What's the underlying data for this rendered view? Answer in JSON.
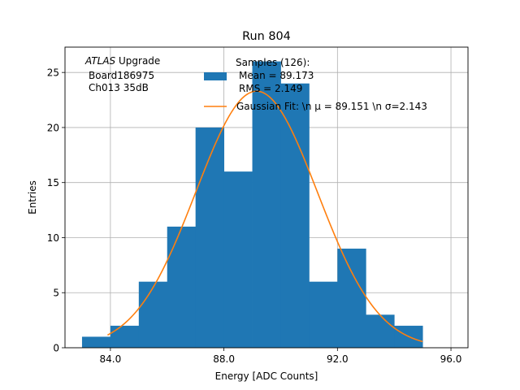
{
  "chart_data": {
    "type": "bar",
    "title": "Run 804",
    "xlabel": "Energy [ADC Counts]",
    "ylabel": "Entries",
    "xlim": [
      82.4,
      96.6
    ],
    "ylim": [
      0,
      27.3
    ],
    "grid": true,
    "x_ticks": [
      84,
      88,
      92,
      96
    ],
    "x_tick_labels": [
      "84.0",
      "88.0",
      "92.0",
      "96.0"
    ],
    "y_ticks": [
      0,
      5,
      10,
      15,
      20,
      25
    ],
    "y_tick_labels": [
      "0",
      "5",
      "10",
      "15",
      "20",
      "25"
    ],
    "histogram": {
      "name": "Samples",
      "color": "#1f77b4",
      "bin_edges": [
        83,
        84,
        85,
        86,
        87,
        88,
        89,
        90,
        91,
        92,
        93,
        94,
        95
      ],
      "counts": [
        1,
        2,
        6,
        11,
        20,
        16,
        26,
        24,
        6,
        9,
        3,
        2
      ]
    },
    "fit": {
      "name": "Gaussian Fit",
      "color": "#ff7f0e",
      "mu": 89.151,
      "sigma": 2.143,
      "amplitude": 23.3,
      "x_range": [
        83.9,
        95
      ]
    },
    "annotation": {
      "italic": "ATLAS",
      "rest": " Upgrade",
      "line2": "Board186975",
      "line3": "Ch013 35dB"
    },
    "legend": {
      "position": "top-right",
      "title": "Samples (126):",
      "hist_line1": "Mean = 89.173",
      "hist_line2": "RMS = 2.149",
      "fit_label": "Gaussian Fit: \\n μ = 89.151 \\n σ=2.143"
    }
  }
}
